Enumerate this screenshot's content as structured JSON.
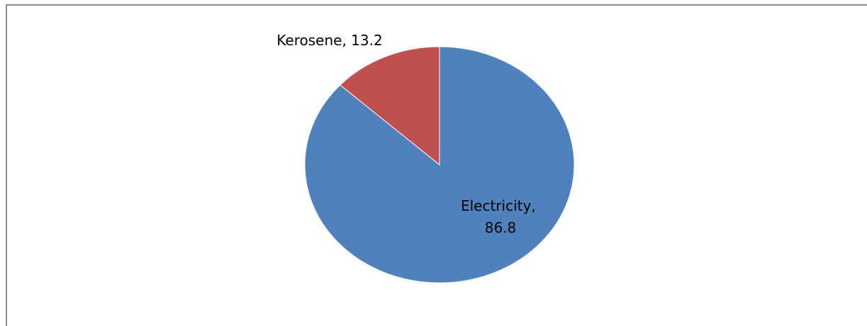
{
  "chart_data": {
    "type": "pie",
    "slices": [
      {
        "label": "Electricity",
        "value": 86.8,
        "color": "#4F81BD"
      },
      {
        "label": "Kerosene",
        "value": 13.2,
        "color": "#C0504D"
      }
    ],
    "data_labels": [
      {
        "lines": [
          "Electricity,",
          "86.8"
        ]
      },
      {
        "lines": [
          "Kerosene, 13.2"
        ]
      }
    ],
    "start_angle": "12 o'clock",
    "direction": "clockwise",
    "legend": "none"
  }
}
